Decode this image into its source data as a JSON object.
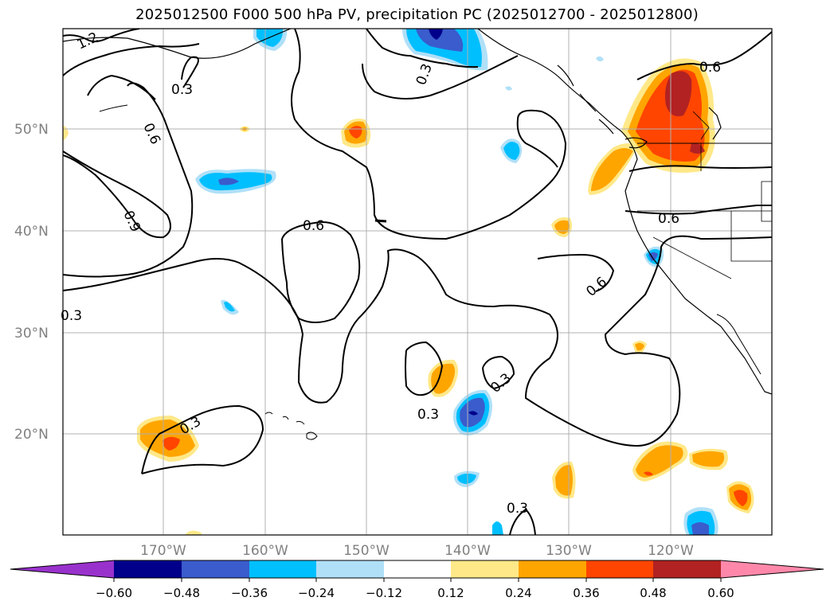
{
  "title": "2025012500 F000 500 hPa PV, precipitation PC (2025012700 - 2025012800)",
  "map": {
    "lat_labels": [
      "50°N",
      "40°N",
      "30°N",
      "20°N"
    ],
    "lon_labels": [
      "170°W",
      "160°W",
      "150°W",
      "140°W",
      "130°W",
      "120°W"
    ],
    "contour_labels": [
      "1.2",
      "0.3",
      "0.6",
      "0.9",
      "0.3",
      "0.6",
      "0.3",
      "0.6",
      "0.6",
      "0.3",
      "0.3",
      "0.3",
      "0.3",
      "0.6"
    ]
  },
  "colorbar": {
    "tick_labels": [
      "−0.60",
      "−0.48",
      "−0.36",
      "−0.24",
      "−0.12",
      "0.12",
      "0.24",
      "0.36",
      "0.48",
      "0.60"
    ],
    "colors": [
      "#9932cc",
      "#00008b",
      "#3a5ccc",
      "#00bfff",
      "#b0e0f8",
      "#ffffff",
      "#ffe888",
      "#ffa500",
      "#ff4500",
      "#b22222",
      "#ff88aa"
    ]
  }
}
